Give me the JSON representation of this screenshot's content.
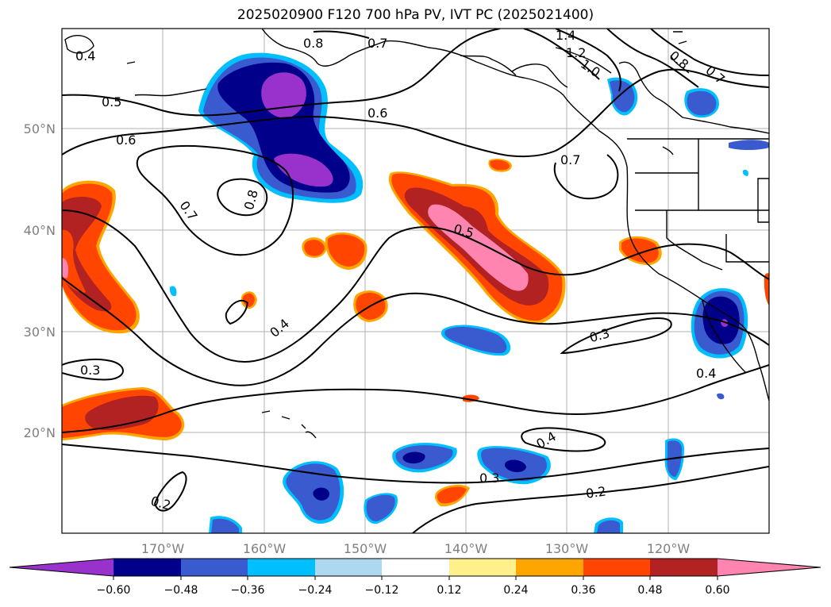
{
  "title": "2025020900 F120 700 hPa PV, IVT PC (2025021400)",
  "lat_labels": [
    "50°N",
    "40°N",
    "30°N",
    "20°N"
  ],
  "lon_labels": [
    "170°W",
    "160°W",
    "150°W",
    "140°W",
    "130°W",
    "120°W"
  ],
  "contour_labels": [
    "0.4",
    "0.5",
    "0.6",
    "0.7",
    "0.8",
    "0.8",
    "0.6",
    "1.4",
    "1.2",
    "1.0",
    "0.8",
    "0.7",
    "0.7",
    "0.7",
    "0.5",
    "0.4",
    "0.3",
    "0.3",
    "0.4",
    "0.4",
    "0.3",
    "0.2",
    "0.2"
  ],
  "colorbar": {
    "ticks": [
      "−0.60",
      "−0.48",
      "−0.36",
      "−0.24",
      "−0.12",
      "0.12",
      "0.24",
      "0.36",
      "0.48",
      "0.60"
    ],
    "colors": [
      "#9932cc",
      "#00008b",
      "#3a5bd0",
      "#00bfff",
      "#add8f0",
      "#ffffff",
      "#fff08c",
      "#ffa500",
      "#ff4500",
      "#b22222",
      "#ff85b0"
    ]
  },
  "fill_colors": {
    "neg_outer": "#00bfff",
    "neg_mid": "#3a5bd0",
    "neg_inner": "#00008b",
    "neg_core": "#9932cc",
    "pos_outer": "#ffa500",
    "pos_mid": "#ff4500",
    "pos_inner": "#b22222",
    "pos_core": "#ff85b0"
  }
}
